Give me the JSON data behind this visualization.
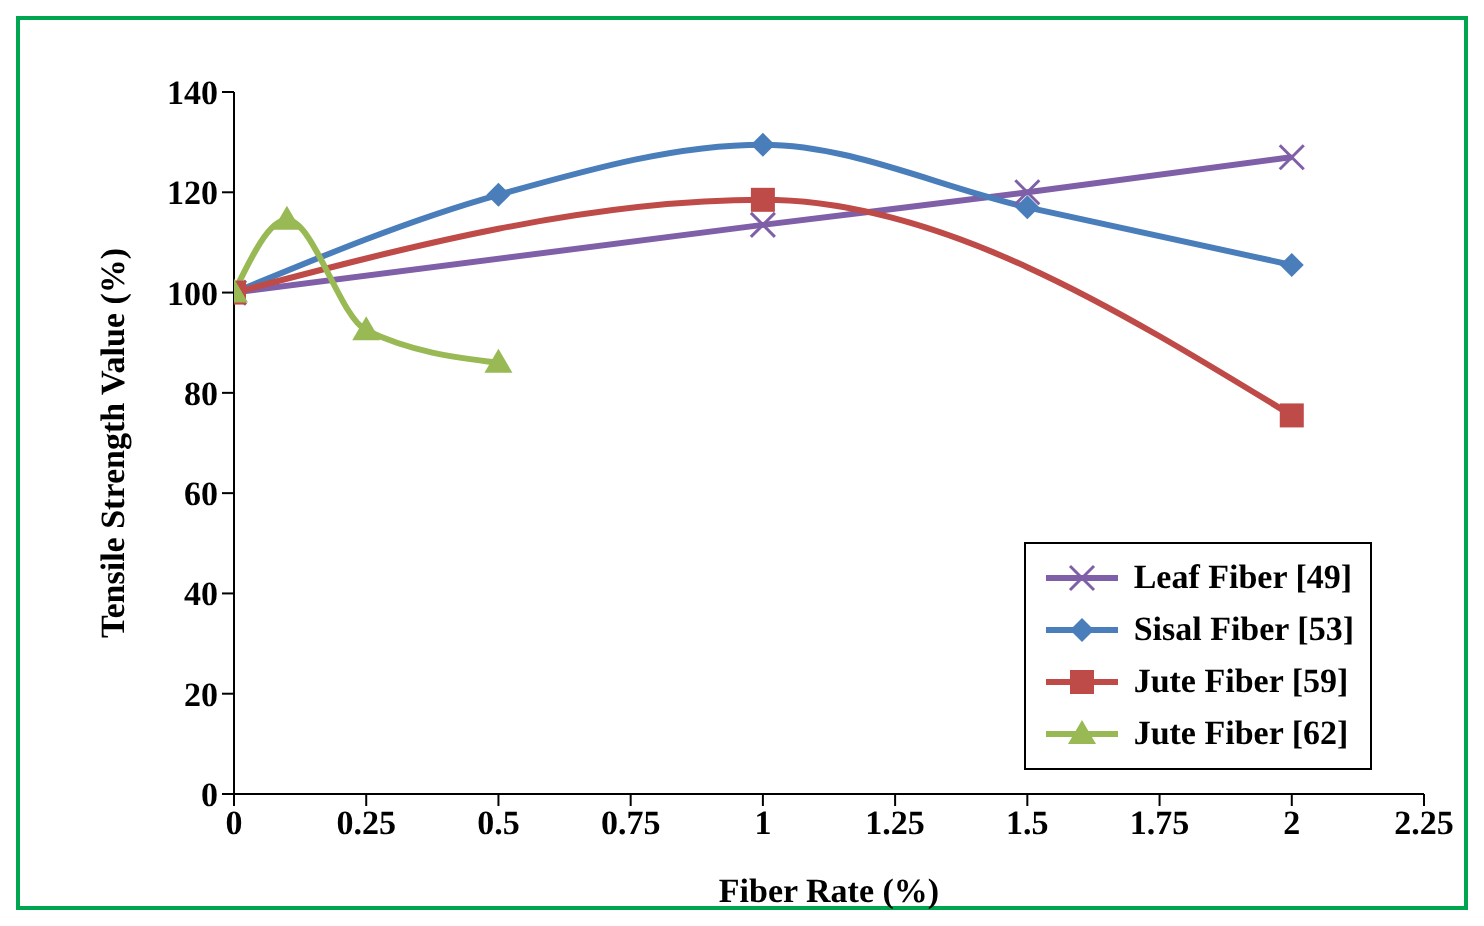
{
  "chart_data": {
    "type": "line",
    "xlabel": "Fiber Rate (%)",
    "ylabel": "Tensile Strength Value (%)",
    "xlim": [
      0,
      2.25
    ],
    "xticks": [
      0,
      0.25,
      0.5,
      0.75,
      1,
      1.25,
      1.5,
      1.75,
      2,
      2.25
    ],
    "ylim": [
      0,
      140
    ],
    "yticks": [
      0,
      20,
      40,
      60,
      80,
      100,
      120,
      140
    ],
    "legend": "bottom right",
    "line_style": "solid",
    "series": [
      {
        "name": "Leaf Fiber [49]",
        "color": "#7f5fa8",
        "marker": "cross",
        "x": [
          0,
          1,
          1.5,
          2
        ],
        "values": [
          100,
          113.5,
          120,
          127
        ]
      },
      {
        "name": "Sisal Fiber [53]",
        "color": "#4a7ebb",
        "marker": "diamond",
        "x": [
          0,
          0.5,
          1,
          1.5,
          2
        ],
        "values": [
          100,
          119.5,
          129.5,
          117,
          105.5
        ]
      },
      {
        "name": "Jute Fiber [59]",
        "color": "#be4b48",
        "marker": "square",
        "x": [
          0,
          1,
          2
        ],
        "values": [
          100,
          118.5,
          75.5
        ]
      },
      {
        "name": "Jute Fiber [62]",
        "color": "#98b954",
        "marker": "triangle",
        "x": [
          0,
          0.1,
          0.25,
          0.5
        ],
        "values": [
          100,
          114.5,
          92.5,
          86
        ]
      }
    ]
  }
}
